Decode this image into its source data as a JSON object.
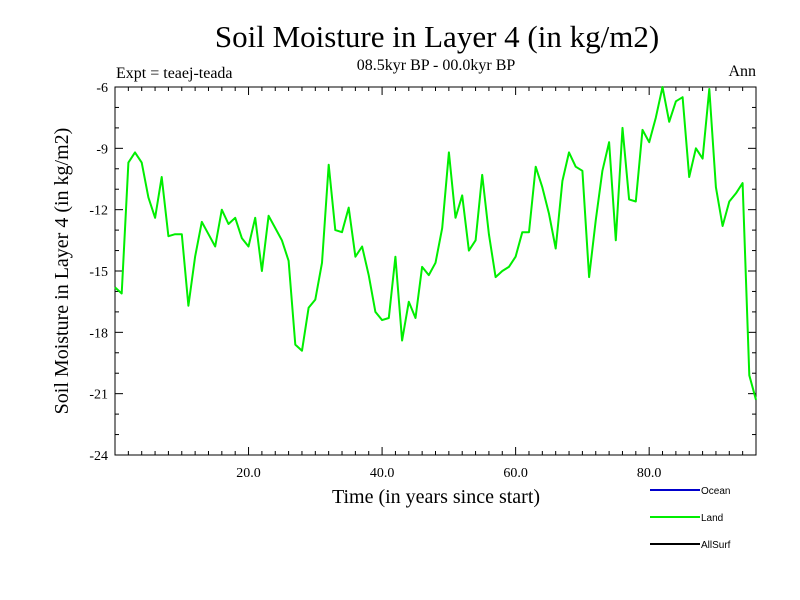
{
  "chart_data": {
    "type": "line",
    "title": "Soil Moisture in Layer 4 (in kg/m2)",
    "subtitle": "08.5kyr BP - 00.0kyr BP",
    "left_note": "Expt = teaej-teada",
    "right_note": "Ann",
    "xlabel": "Time (in years since start)",
    "ylabel": "Soil Moisture in Layer 4 (in kg/m2)",
    "xlim": [
      0,
      96
    ],
    "ylim": [
      -24,
      -6
    ],
    "x_ticks": [
      20,
      40,
      60,
      80
    ],
    "x_tick_labels": [
      "20.0",
      "40.0",
      "60.0",
      "80.0"
    ],
    "y_ticks": [
      -24,
      -21,
      -18,
      -15,
      -12,
      -9,
      -6
    ],
    "y_tick_labels": [
      "-24",
      "-21",
      "-18",
      "-15",
      "-12",
      "-9",
      "-6"
    ],
    "legend": [
      {
        "name": "Ocean",
        "color": "#0000cc"
      },
      {
        "name": "Land",
        "color": "#00ee00"
      },
      {
        "name": "AllSurf",
        "color": "#000000"
      }
    ],
    "series": [
      {
        "name": "Land",
        "color": "#00ee00",
        "x": [
          0,
          1,
          2,
          3,
          4,
          5,
          6,
          7,
          8,
          9,
          10,
          11,
          12,
          13,
          14,
          15,
          16,
          17,
          18,
          19,
          20,
          21,
          22,
          23,
          24,
          25,
          26,
          27,
          28,
          29,
          30,
          31,
          32,
          33,
          34,
          35,
          36,
          37,
          38,
          39,
          40,
          41,
          42,
          43,
          44,
          45,
          46,
          47,
          48,
          49,
          50,
          51,
          52,
          53,
          54,
          55,
          56,
          57,
          58,
          59,
          60,
          61,
          62,
          63,
          64,
          65,
          66,
          67,
          68,
          69,
          70,
          71,
          72,
          73,
          74,
          75,
          76,
          77,
          78,
          79,
          80,
          81,
          82,
          83,
          84,
          85,
          86,
          87,
          88,
          89,
          90,
          91,
          92,
          93,
          94,
          95,
          96
        ],
        "values": [
          -15.8,
          -16.1,
          -9.7,
          -9.2,
          -9.7,
          -11.4,
          -12.4,
          -10.4,
          -13.3,
          -13.2,
          -13.2,
          -16.7,
          -14.3,
          -12.6,
          -13.2,
          -13.8,
          -12.0,
          -12.7,
          -12.4,
          -13.4,
          -13.8,
          -12.4,
          -15.0,
          -12.3,
          -12.9,
          -13.5,
          -14.5,
          -18.6,
          -18.9,
          -16.8,
          -16.4,
          -14.6,
          -9.8,
          -13.0,
          -13.1,
          -11.9,
          -14.3,
          -13.8,
          -15.2,
          -17.0,
          -17.4,
          -17.3,
          -14.3,
          -18.4,
          -16.5,
          -17.3,
          -14.8,
          -15.2,
          -14.6,
          -12.9,
          -9.2,
          -12.4,
          -11.3,
          -14.0,
          -13.5,
          -10.3,
          -13.2,
          -15.3,
          -15.0,
          -14.8,
          -14.3,
          -13.1,
          -13.1,
          -9.9,
          -10.9,
          -12.2,
          -13.9,
          -10.6,
          -9.2,
          -9.9,
          -10.1,
          -15.3,
          -12.5,
          -10.1,
          -8.7,
          -13.5,
          -8.0,
          -11.5,
          -11.6,
          -8.1,
          -8.7,
          -7.5,
          -6.0,
          -7.7,
          -6.7,
          -6.5,
          -10.4,
          -9.0,
          -9.5,
          -6.1,
          -10.9,
          -12.8,
          -11.6,
          -11.2,
          -10.7,
          -20.1,
          -21.3
        ]
      }
    ]
  }
}
